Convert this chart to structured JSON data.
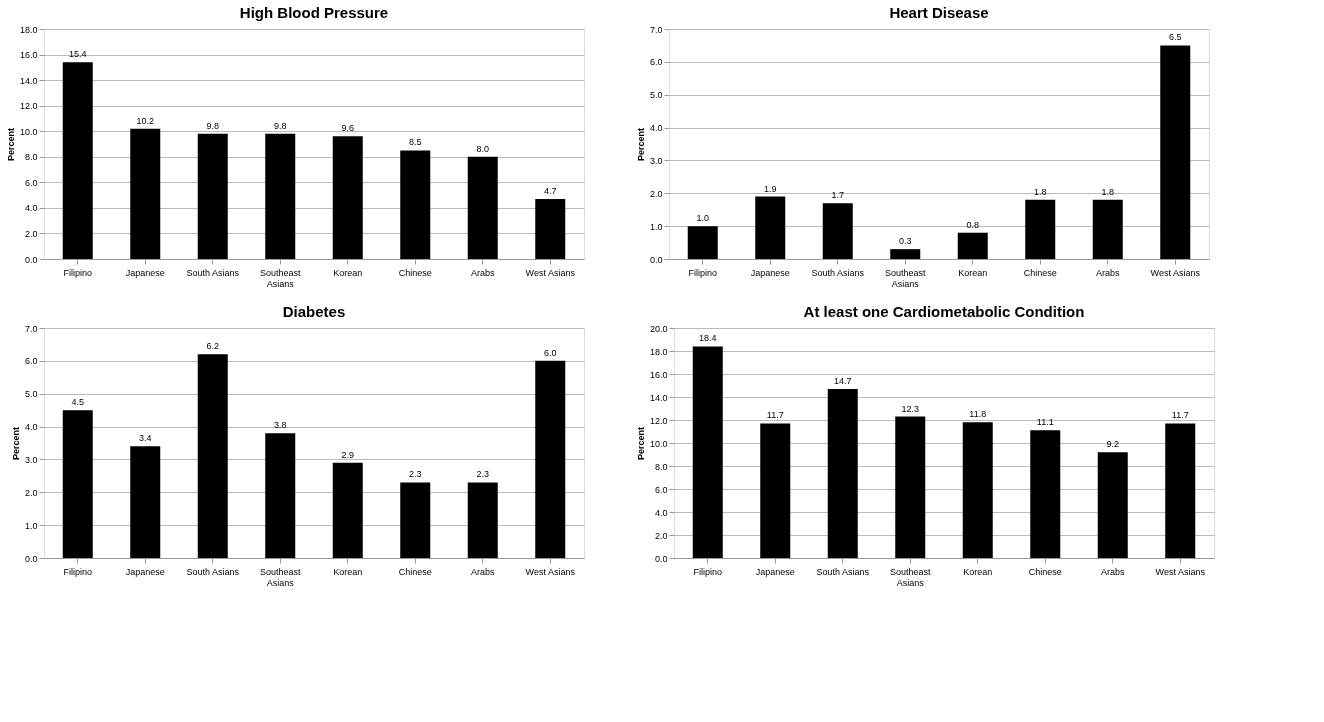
{
  "chart_data": [
    {
      "type": "bar",
      "title": "High Blood Pressure",
      "ylabel": "Percent",
      "categories": [
        "Filipino",
        "Japanese",
        "South Asians",
        "Southeast Asians",
        "Korean",
        "Chinese",
        "Arabs",
        "West Asians"
      ],
      "values": [
        15.4,
        10.2,
        9.8,
        9.8,
        9.6,
        8.5,
        8.0,
        4.7
      ],
      "value_labels": [
        "15.4",
        "10.2",
        "9.8",
        "9.8",
        "9.6",
        "8.5",
        "8.0",
        "4.7"
      ],
      "color": "#000000",
      "ylim": [
        0,
        18
      ],
      "yticks": [
        {
          "value": 0,
          "label": "0.0"
        },
        {
          "value": 2,
          "label": "2.0"
        },
        {
          "value": 4,
          "label": "4.0"
        },
        {
          "value": 6,
          "label": "6.0"
        },
        {
          "value": 8,
          "label": "8.0"
        },
        {
          "value": 10,
          "label": "10.0"
        },
        {
          "value": 12,
          "label": "12.0"
        },
        {
          "value": 14,
          "label": "14.0"
        },
        {
          "value": 16,
          "label": "16.0"
        },
        {
          "value": 18,
          "label": "18.0"
        }
      ],
      "grid": "y"
    },
    {
      "type": "bar",
      "title": "Heart Disease",
      "ylabel": "Percent",
      "categories": [
        "Filipino",
        "Japanese",
        "South Asians",
        "Southeast Asians",
        "Korean",
        "Chinese",
        "Arabs",
        "West Asians"
      ],
      "values": [
        1.0,
        1.9,
        1.7,
        0.3,
        0.8,
        1.8,
        1.8,
        6.5
      ],
      "value_labels": [
        "1.0",
        "1.9",
        "1.7",
        "0.3",
        "0.8",
        "1.8",
        "1.8",
        "6.5"
      ],
      "color": "#000000",
      "ylim": [
        0,
        7
      ],
      "yticks": [
        {
          "value": 0,
          "label": "0.0"
        },
        {
          "value": 1,
          "label": "1.0"
        },
        {
          "value": 2,
          "label": "2.0"
        },
        {
          "value": 3,
          "label": "3.0"
        },
        {
          "value": 4,
          "label": "4.0"
        },
        {
          "value": 5,
          "label": "5.0"
        },
        {
          "value": 6,
          "label": "6.0"
        },
        {
          "value": 7,
          "label": "7.0"
        }
      ],
      "grid": "y"
    },
    {
      "type": "bar",
      "title": "Diabetes",
      "ylabel": "Percent",
      "categories": [
        "Filipino",
        "Japanese",
        "South Asians",
        "Southeast Asians",
        "Korean",
        "Chinese",
        "Arabs",
        "West Asians"
      ],
      "values": [
        4.5,
        3.4,
        6.2,
        3.8,
        2.9,
        2.3,
        2.3,
        6.0
      ],
      "value_labels": [
        "4.5",
        "3.4",
        "6.2",
        "3.8",
        "2.9",
        "2.3",
        "2.3",
        "6.0"
      ],
      "color": "#000000",
      "ylim": [
        0,
        7
      ],
      "yticks": [
        {
          "value": 0,
          "label": "0.0"
        },
        {
          "value": 1,
          "label": "1.0"
        },
        {
          "value": 2,
          "label": "2.0"
        },
        {
          "value": 3,
          "label": "3.0"
        },
        {
          "value": 4,
          "label": "4.0"
        },
        {
          "value": 5,
          "label": "5.0"
        },
        {
          "value": 6,
          "label": "6.0"
        },
        {
          "value": 7,
          "label": "7.0"
        }
      ],
      "grid": "y"
    },
    {
      "type": "bar",
      "title": "At least one Cardiometabolic Condition",
      "ylabel": "Percent",
      "categories": [
        "Filipino",
        "Japanese",
        "South Asians",
        "Southeast Asians",
        "Korean",
        "Chinese",
        "Arabs",
        "West Asians"
      ],
      "values": [
        18.4,
        11.7,
        14.7,
        12.3,
        11.8,
        11.1,
        9.2,
        11.7
      ],
      "value_labels": [
        "18.4",
        "11.7",
        "14.7",
        "12.3",
        "11.8",
        "11.1",
        "9.2",
        "11.7"
      ],
      "color": "#000000",
      "ylim": [
        0,
        20
      ],
      "yticks": [
        {
          "value": 0,
          "label": "0.0"
        },
        {
          "value": 2,
          "label": "2.0"
        },
        {
          "value": 4,
          "label": "4.0"
        },
        {
          "value": 6,
          "label": "6.0"
        },
        {
          "value": 8,
          "label": "8.0"
        },
        {
          "value": 10,
          "label": "10.0"
        },
        {
          "value": 12,
          "label": "12.0"
        },
        {
          "value": 14,
          "label": "14.0"
        },
        {
          "value": 16,
          "label": "16.0"
        },
        {
          "value": 18,
          "label": "18.0"
        },
        {
          "value": 20,
          "label": "20.0"
        }
      ],
      "grid": "y"
    }
  ]
}
